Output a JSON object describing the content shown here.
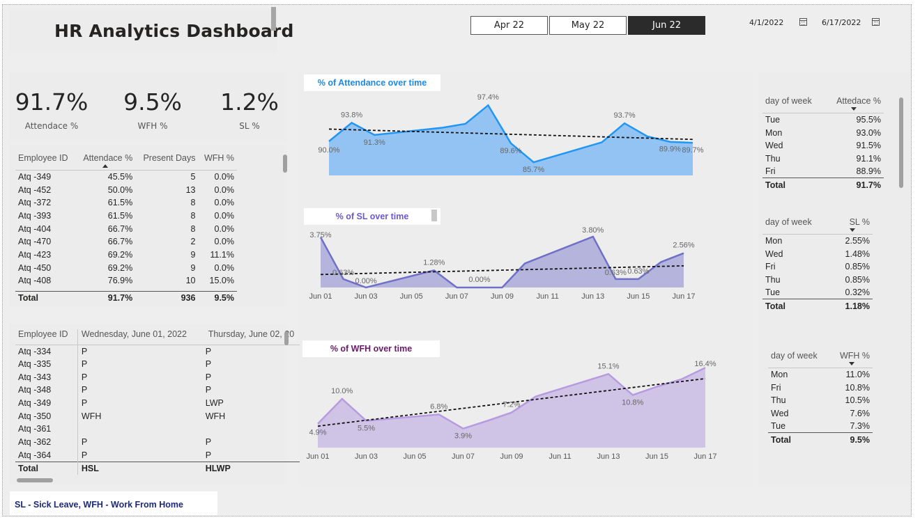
{
  "header": {
    "title": "HR Analytics Dashboard",
    "months": [
      {
        "label": "Apr 22",
        "active": false
      },
      {
        "label": "May 22",
        "active": false
      },
      {
        "label": "Jun 22",
        "active": true
      }
    ],
    "date_start": "4/1/2022",
    "date_end": "6/17/2022"
  },
  "kpis": [
    {
      "value": "91.7%",
      "label": "Attendace %"
    },
    {
      "value": "9.5%",
      "label": "WFH %"
    },
    {
      "value": "1.2%",
      "label": "SL %"
    }
  ],
  "employee_table": {
    "columns": [
      "Employee ID",
      "Attendace %",
      "Present Days",
      "WFH %"
    ],
    "rows": [
      [
        "Atq -349",
        "45.5%",
        "5",
        "0.0%"
      ],
      [
        "Atq -452",
        "50.0%",
        "13",
        "0.0%"
      ],
      [
        "Atq -372",
        "61.5%",
        "8",
        "0.0%"
      ],
      [
        "Atq -393",
        "61.5%",
        "8",
        "0.0%"
      ],
      [
        "Atq -404",
        "66.7%",
        "8",
        "0.0%"
      ],
      [
        "Atq -470",
        "66.7%",
        "2",
        "0.0%"
      ],
      [
        "Atq -423",
        "69.2%",
        "9",
        "11.1%"
      ],
      [
        "Atq -450",
        "69.2%",
        "9",
        "0.0%"
      ],
      [
        "Atq -408",
        "76.9%",
        "10",
        "15.0%"
      ]
    ],
    "total": [
      "Total",
      "91.7%",
      "936",
      "9.5%"
    ]
  },
  "daily_table": {
    "columns": [
      "Employee ID",
      "Wednesday, June 01, 2022",
      "Thursday, June 02, 20"
    ],
    "rows": [
      [
        "Atq -334",
        "P",
        "P"
      ],
      [
        "Atq -335",
        "P",
        "P"
      ],
      [
        "Atq -343",
        "P",
        "P"
      ],
      [
        "Atq -348",
        "P",
        "P"
      ],
      [
        "Atq -349",
        "P",
        "LWP"
      ],
      [
        "Atq -350",
        "WFH",
        "WFH"
      ],
      [
        "Atq -361",
        "",
        ""
      ],
      [
        "Atq -362",
        "P",
        "P"
      ],
      [
        "Atq -364",
        "P",
        "P"
      ]
    ],
    "total": [
      "Total",
      "HSL",
      "HLWP"
    ]
  },
  "legend_note": "SL - Sick Leave, WFH - Work From Home",
  "dow_attendance": {
    "columns": [
      "day of week",
      "Attedace %"
    ],
    "rows": [
      [
        "Tue",
        "95.5%"
      ],
      [
        "Mon",
        "93.0%"
      ],
      [
        "Wed",
        "91.5%"
      ],
      [
        "Thu",
        "91.1%"
      ],
      [
        "Fri",
        "88.9%"
      ]
    ],
    "total": [
      "Total",
      "91.7%"
    ]
  },
  "dow_sl": {
    "columns": [
      "day of week",
      "SL %"
    ],
    "rows": [
      [
        "Mon",
        "2.55%"
      ],
      [
        "Wed",
        "1.48%"
      ],
      [
        "Fri",
        "0.85%"
      ],
      [
        "Thu",
        "0.85%"
      ],
      [
        "Tue",
        "0.32%"
      ]
    ],
    "total": [
      "Total",
      "1.18%"
    ]
  },
  "dow_wfh": {
    "columns": [
      "day of week",
      "WFH %"
    ],
    "rows": [
      [
        "Mon",
        "11.0%"
      ],
      [
        "Fri",
        "10.8%"
      ],
      [
        "Thu",
        "10.5%"
      ],
      [
        "Wed",
        "7.6%"
      ],
      [
        "Tue",
        "7.3%"
      ]
    ],
    "total": [
      "Total",
      "9.5%"
    ]
  },
  "colors": {
    "attendance": "#2196f3",
    "attendance_fill": "#93c3f3",
    "sl": "#7070c8",
    "sl_fill": "#b4b4dc",
    "wfh": "#b89ae0",
    "wfh_fill": "#d0c4e6",
    "sl_title": "#6a5acd",
    "wfh_title": "#6a1b6a",
    "att_title": "#1e88e5"
  },
  "chart_data": [
    {
      "type": "area",
      "title": "% of Attendance over time",
      "x": [
        "Jun 01",
        "Jun 02",
        "Jun 03",
        "Jun 06",
        "Jun 07",
        "Jun 08",
        "Jun 09",
        "Jun 10",
        "Jun 13",
        "Jun 14",
        "Jun 15",
        "Jun 16",
        "Jun 17"
      ],
      "values": [
        90.0,
        93.8,
        91.3,
        92.8,
        93.6,
        97.4,
        89.6,
        85.7,
        89.8,
        93.7,
        91.0,
        89.9,
        89.7
      ],
      "point_labels": [
        "90.0%",
        "93.8%",
        "91.3%",
        "",
        "",
        "97.4%",
        "89.6%",
        "85.7%",
        "",
        "93.7%",
        "",
        "89.9%",
        "89.7%"
      ],
      "trendline": true,
      "ylim": [
        83,
        99
      ]
    },
    {
      "type": "area",
      "title": "% of SL over time",
      "x": [
        "Jun 01",
        "Jun 02",
        "Jun 03",
        "Jun 06",
        "Jun 07",
        "Jun 08",
        "Jun 09",
        "Jun 10",
        "Jun 13",
        "Jun 14",
        "Jun 15",
        "Jun 16",
        "Jun 17"
      ],
      "values": [
        3.75,
        0.63,
        0.0,
        1.28,
        0.0,
        0.0,
        0.0,
        1.8,
        3.8,
        0.63,
        0.63,
        1.9,
        2.56
      ],
      "point_labels": [
        "3.75%",
        "0.63%",
        "0.00%",
        "1.28%",
        "",
        "0.00%",
        "",
        "",
        "3.80%",
        "0.63%",
        "0.63%",
        "",
        "2.56%"
      ],
      "tick_labels": [
        "Jun 01",
        "Jun 03",
        "Jun 05",
        "Jun 07",
        "Jun 09",
        "Jun 11",
        "Jun 13",
        "Jun 15",
        "Jun 17"
      ],
      "trendline": true,
      "ylim": [
        0,
        4
      ]
    },
    {
      "type": "area",
      "title": "% of WFH over time",
      "x": [
        "Jun 01",
        "Jun 02",
        "Jun 03",
        "Jun 06",
        "Jun 07",
        "Jun 08",
        "Jun 09",
        "Jun 10",
        "Jun 13",
        "Jun 14",
        "Jun 15",
        "Jun 16",
        "Jun 17"
      ],
      "values": [
        4.9,
        10.0,
        5.5,
        6.8,
        3.9,
        5.5,
        7.2,
        10.5,
        15.1,
        10.8,
        12.5,
        14.0,
        16.4
      ],
      "point_labels": [
        "4.9%",
        "10.0%",
        "5.5%",
        "6.8%",
        "3.9%",
        "",
        "7.2%",
        "",
        "15.1%",
        "10.8%",
        "",
        "",
        "16.4%"
      ],
      "tick_labels": [
        "Jun 01",
        "Jun 03",
        "Jun 05",
        "Jun 07",
        "Jun 09",
        "Jun 11",
        "Jun 13",
        "Jun 15",
        "Jun 17"
      ],
      "trendline": true,
      "ylim": [
        0,
        17
      ]
    }
  ]
}
